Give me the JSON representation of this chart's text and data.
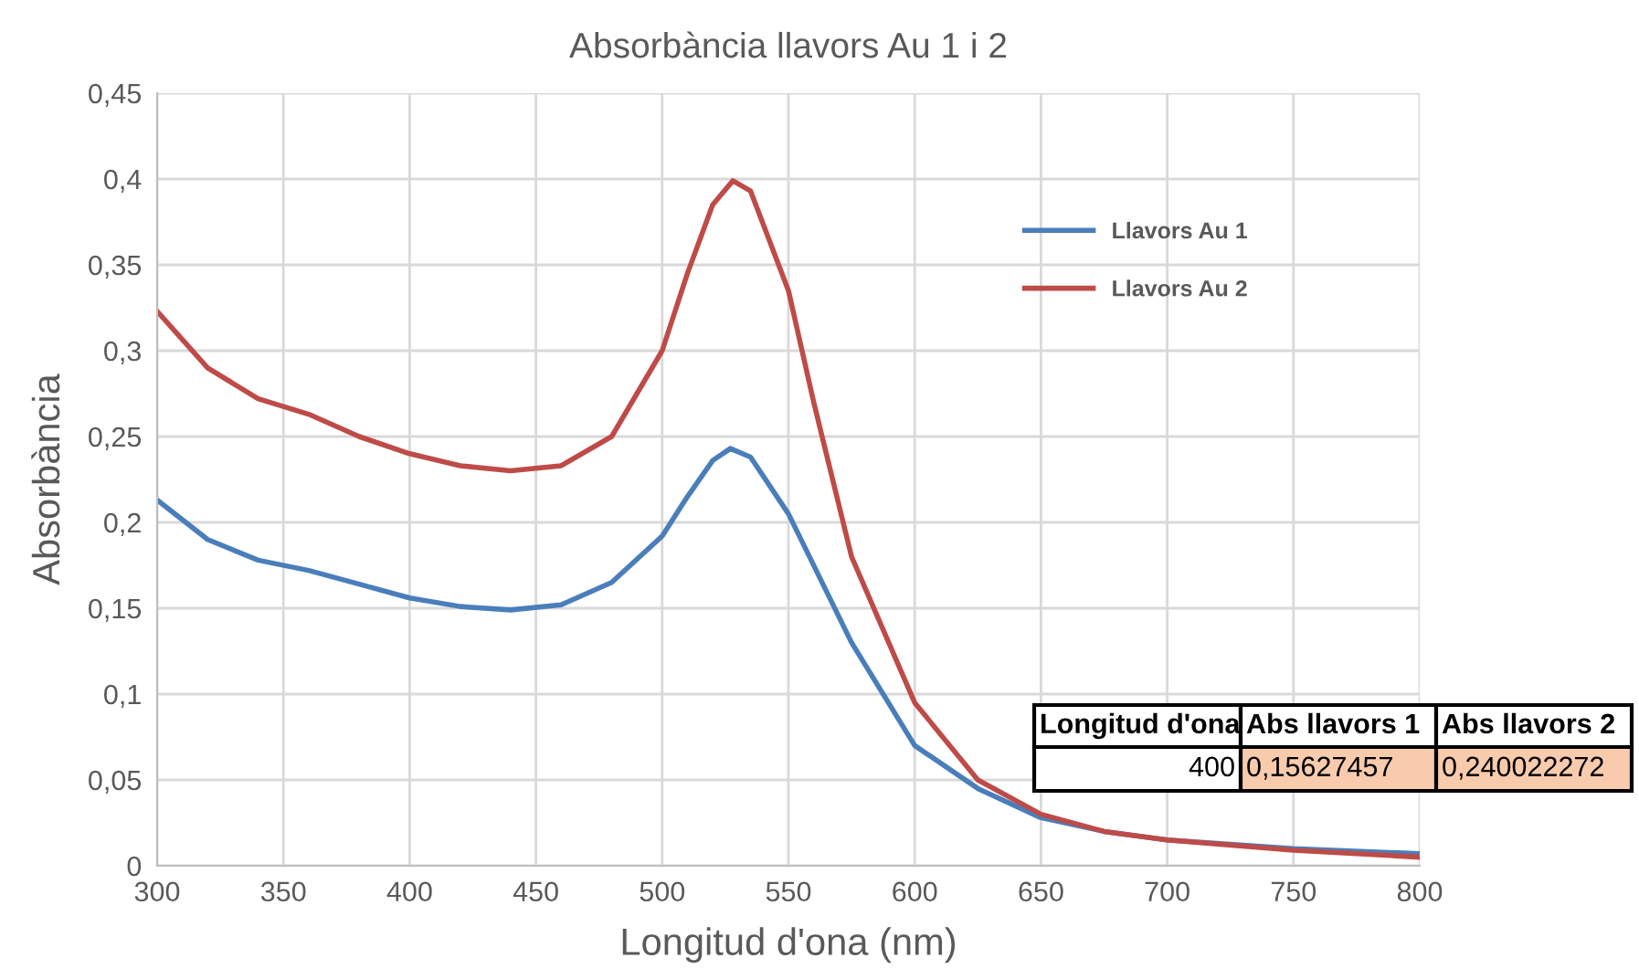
{
  "chart_data": {
    "type": "line",
    "title": "Absorbància llavors Au 1 i 2",
    "xlabel": "Longitud d'ona (nm)",
    "ylabel": "Absorbància",
    "series": [
      {
        "name": "Llavors Au 1",
        "color": "#4a7ebb",
        "x": [
          300,
          320,
          340,
          360,
          380,
          400,
          420,
          440,
          460,
          480,
          500,
          510,
          520,
          527,
          535,
          550,
          575,
          600,
          625,
          650,
          675,
          700,
          750,
          800
        ],
        "values": [
          0.213,
          0.19,
          0.178,
          0.172,
          0.164,
          0.156,
          0.151,
          0.149,
          0.152,
          0.165,
          0.192,
          0.215,
          0.236,
          0.243,
          0.238,
          0.205,
          0.13,
          0.07,
          0.045,
          0.028,
          0.02,
          0.015,
          0.01,
          0.007
        ]
      },
      {
        "name": "Llavors Au 2",
        "color": "#be4b48",
        "x": [
          300,
          320,
          340,
          360,
          380,
          400,
          420,
          440,
          460,
          480,
          500,
          510,
          520,
          528,
          535,
          550,
          560,
          575,
          600,
          625,
          650,
          675,
          700,
          750,
          800
        ],
        "values": [
          0.323,
          0.29,
          0.272,
          0.263,
          0.25,
          0.24,
          0.233,
          0.23,
          0.233,
          0.25,
          0.3,
          0.345,
          0.385,
          0.399,
          0.393,
          0.335,
          0.27,
          0.18,
          0.095,
          0.05,
          0.03,
          0.02,
          0.015,
          0.009,
          0.005
        ]
      }
    ],
    "xlim": [
      300,
      800
    ],
    "xticks": [
      300,
      350,
      400,
      450,
      500,
      550,
      600,
      650,
      700,
      750,
      800
    ],
    "ylim": [
      0,
      0.45
    ],
    "yticks": [
      {
        "value": 0,
        "label": "0"
      },
      {
        "value": 0.05,
        "label": "0,05"
      },
      {
        "value": 0.1,
        "label": "0,1"
      },
      {
        "value": 0.15,
        "label": "0,15"
      },
      {
        "value": 0.2,
        "label": "0,2"
      },
      {
        "value": 0.25,
        "label": "0,25"
      },
      {
        "value": 0.3,
        "label": "0,3"
      },
      {
        "value": 0.35,
        "label": "0,35"
      },
      {
        "value": 0.4,
        "label": "0,4"
      },
      {
        "value": 0.45,
        "label": "0,45"
      }
    ],
    "grid": true,
    "legend": "top right",
    "marker": "none",
    "line_style": "solid",
    "annotations": [
      "Longitud d'ona",
      "Abs llavors 1",
      "Abs llavors 2",
      "400",
      "0,15627457",
      "0,240022272"
    ]
  }
}
